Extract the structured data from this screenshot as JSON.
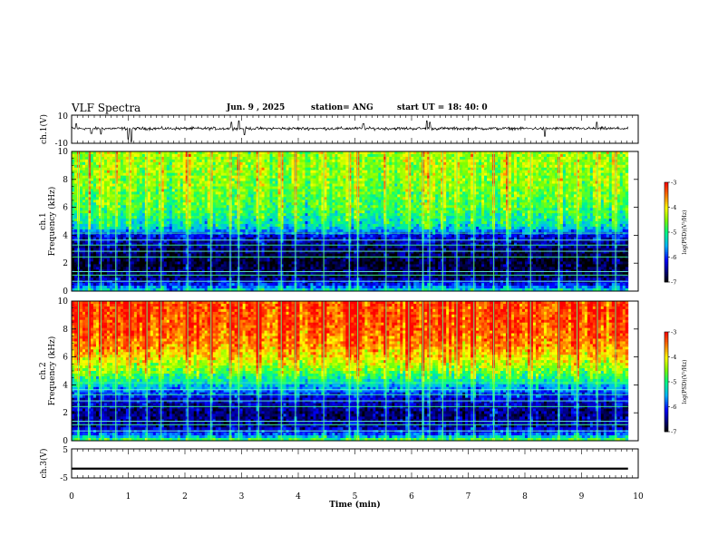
{
  "header": {
    "title": "VLF Spectra",
    "date": "Jun. 9 , 2025",
    "station": "station= ANG",
    "start": "start  UT =   18: 40: 0"
  },
  "chart_data": [
    {
      "type": "line",
      "name": "ch1-waveform",
      "ylabel": "ch.1(V)",
      "ylim": [
        -10,
        10
      ],
      "ytick_labels": [
        "10",
        "-10"
      ],
      "xlim": [
        0,
        10
      ],
      "baseline_v": 0.5,
      "noise_amplitude_v": 1.5,
      "spikes": [
        {
          "t": 0.08,
          "v": 4
        },
        {
          "t": 0.35,
          "v": -3
        },
        {
          "t": 0.52,
          "v": -3.5
        },
        {
          "t": 1.0,
          "v": -7
        },
        {
          "t": 1.05,
          "v": -9
        },
        {
          "t": 2.82,
          "v": 5
        },
        {
          "t": 2.95,
          "v": 6
        },
        {
          "t": 3.05,
          "v": -4
        },
        {
          "t": 5.15,
          "v": 4
        },
        {
          "t": 6.27,
          "v": 6
        },
        {
          "t": 6.32,
          "v": 5
        },
        {
          "t": 8.35,
          "v": -5
        },
        {
          "t": 9.27,
          "v": 5
        }
      ]
    },
    {
      "type": "heatmap",
      "name": "ch1-spectrogram",
      "ylabel": "ch.1\nFrequency (kHz)",
      "ylim": [
        0,
        10
      ],
      "yticks": [
        0,
        2,
        4,
        6,
        8,
        10
      ],
      "xlim": [
        0,
        10
      ],
      "data_end_min": 9.82,
      "colorbar": {
        "label": "log(PSD)(V²/Hz)",
        "range": [
          -7,
          -3
        ],
        "ticks": [
          -3,
          -4,
          -5,
          -6,
          -7
        ]
      },
      "level_profile": [
        {
          "f": 0.0,
          "v": -5.2
        },
        {
          "f": 0.4,
          "v": -6.0
        },
        {
          "f": 1.0,
          "v": -6.7
        },
        {
          "f": 2.0,
          "v": -6.9
        },
        {
          "f": 3.0,
          "v": -6.7
        },
        {
          "f": 4.0,
          "v": -6.2
        },
        {
          "f": 4.6,
          "v": -5.3
        },
        {
          "f": 6.0,
          "v": -4.8
        },
        {
          "f": 8.0,
          "v": -4.5
        },
        {
          "f": 10.0,
          "v": -4.4
        }
      ],
      "transmitter_lines_khz": [
        0.7,
        1.15,
        1.4,
        2.45,
        2.85,
        3.3,
        3.65,
        4.15
      ],
      "impulse_times_min": [
        0.12,
        0.3,
        0.52,
        0.78,
        1.02,
        1.33,
        1.58,
        2.05,
        2.46,
        2.8,
        2.95,
        3.3,
        3.7,
        3.95,
        4.45,
        4.9,
        5.05,
        5.55,
        5.95,
        6.2,
        6.32,
        6.55,
        6.8,
        7.1,
        7.45,
        7.7,
        8.1,
        8.6,
        8.92,
        9.28,
        9.6
      ]
    },
    {
      "type": "heatmap",
      "name": "ch2-spectrogram",
      "ylabel": "ch.2\nFrequency (kHz)",
      "ylim": [
        0,
        10
      ],
      "yticks": [
        0,
        2,
        4,
        6,
        8,
        10
      ],
      "xlim": [
        0,
        10
      ],
      "data_end_min": 9.82,
      "colorbar": {
        "label": "log(PSD)(V²/Hz)",
        "range": [
          -7,
          -3
        ],
        "ticks": [
          -3,
          -4,
          -5,
          -6,
          -7
        ]
      },
      "level_profile": [
        {
          "f": 0.0,
          "v": -4.6
        },
        {
          "f": 0.4,
          "v": -5.8
        },
        {
          "f": 1.0,
          "v": -6.5
        },
        {
          "f": 2.0,
          "v": -6.6
        },
        {
          "f": 3.0,
          "v": -6.3
        },
        {
          "f": 4.0,
          "v": -5.4
        },
        {
          "f": 5.0,
          "v": -4.6
        },
        {
          "f": 6.0,
          "v": -4.0
        },
        {
          "f": 7.0,
          "v": -3.6
        },
        {
          "f": 8.0,
          "v": -3.4
        },
        {
          "f": 10.0,
          "v": -3.3
        }
      ],
      "transmitter_lines_khz": [
        0.7,
        1.15,
        1.4,
        2.45,
        2.85,
        3.3,
        3.65,
        4.15
      ],
      "impulse_times_min": [
        0.12,
        0.3,
        0.52,
        0.78,
        1.02,
        1.33,
        1.58,
        2.05,
        2.46,
        2.8,
        2.95,
        3.3,
        3.7,
        3.95,
        4.45,
        4.9,
        5.05,
        5.55,
        5.95,
        6.2,
        6.32,
        6.55,
        6.8,
        7.1,
        7.45,
        7.7,
        8.1,
        8.6,
        8.92,
        9.28,
        9.6
      ]
    },
    {
      "type": "line",
      "name": "ch3-waveform",
      "ylabel": "ch.3(V)",
      "ylim": [
        -5,
        5
      ],
      "ytick_labels": [
        "5",
        "-5"
      ],
      "xlim": [
        0,
        10
      ],
      "level_v": -1.8,
      "band_v": 0.35,
      "data_end_min": 9.82,
      "xlabel": "Time  (min)",
      "xticks": [
        0,
        1,
        2,
        3,
        4,
        5,
        6,
        7,
        8,
        9,
        10
      ]
    }
  ]
}
